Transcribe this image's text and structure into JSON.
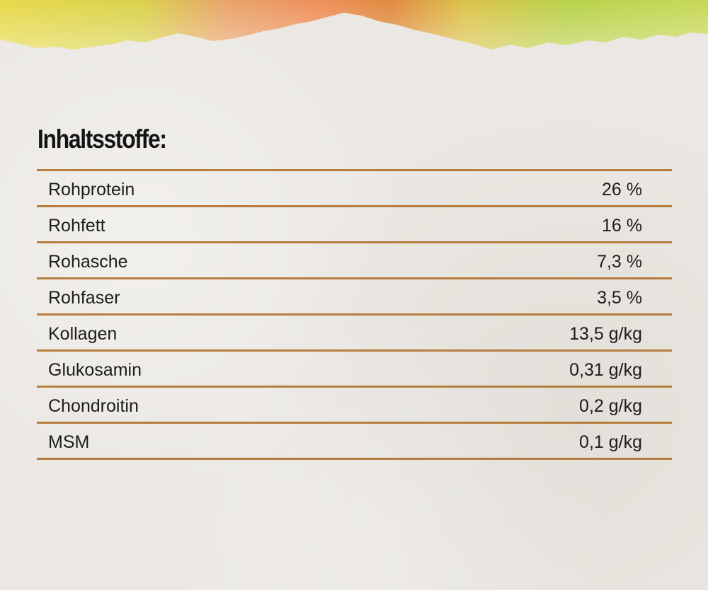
{
  "title": "Inhaltsstoffe:",
  "accent_color": "#b87d3e",
  "rows": [
    {
      "name": "Rohprotein",
      "value": "26 %"
    },
    {
      "name": "Rohfett",
      "value": "16 %"
    },
    {
      "name": "Rohasche",
      "value": "7,3 %"
    },
    {
      "name": "Rohfaser",
      "value": "3,5 %"
    },
    {
      "name": "Kollagen",
      "value": "13,5 g/kg"
    },
    {
      "name": "Glukosamin",
      "value": "0,31 g/kg"
    },
    {
      "name": "Chondroitin",
      "value": "0,2 g/kg"
    },
    {
      "name": "MSM",
      "value": "0,1 g/kg"
    }
  ]
}
